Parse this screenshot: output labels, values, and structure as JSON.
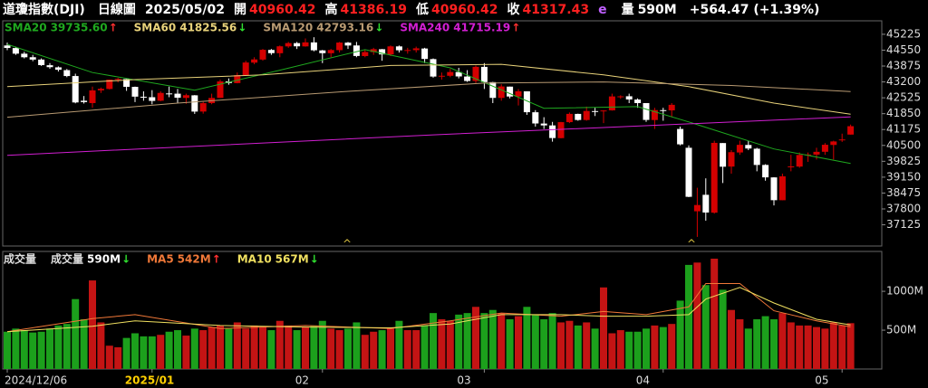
{
  "header": {
    "name": "道瓊指數(DJI)",
    "period": "日線圖",
    "date": "2025/05/02",
    "fields": [
      {
        "label": "開",
        "value": "40960.42"
      },
      {
        "label": "高",
        "value": "41386.19"
      },
      {
        "label": "低",
        "value": "40960.42"
      },
      {
        "label": "收",
        "value": "41317.43"
      }
    ],
    "flag": "e",
    "volume_label": "量",
    "volume": "590M",
    "change": "+564.47 (+1.39%)"
  },
  "chart_data": [
    {
      "type": "candlestick",
      "categories": [
        "2024/12/06",
        null,
        null,
        null,
        null,
        null,
        null,
        null,
        null,
        null,
        null,
        null,
        null,
        null,
        null,
        null,
        null,
        "2025/01",
        null,
        null,
        null,
        null,
        null,
        null,
        null,
        null,
        null,
        null,
        null,
        null,
        null,
        null,
        null,
        null,
        null,
        null,
        null,
        "02",
        null,
        null,
        null,
        null,
        null,
        null,
        null,
        null,
        null,
        null,
        null,
        null,
        null,
        null,
        null,
        null,
        null,
        null,
        "03",
        null,
        null,
        null,
        null,
        null,
        null,
        null,
        null,
        null,
        null,
        null,
        null,
        null,
        null,
        null,
        null,
        null,
        null,
        null,
        null,
        "04",
        null,
        null,
        null,
        null,
        null,
        null,
        null,
        null,
        null,
        null,
        null,
        null,
        null,
        null,
        null,
        null,
        null,
        null,
        null,
        null,
        "05",
        null
      ],
      "open": [
        44750,
        44640,
        44400,
        44250,
        44150,
        43910,
        43820,
        43700,
        43450,
        42400,
        42300,
        42840,
        42900,
        43290,
        43320,
        42990,
        42570,
        42550,
        42400,
        42710,
        42700,
        42520,
        42630,
        41940,
        42300,
        42520,
        43220,
        43150,
        43490,
        44020,
        44150,
        44560,
        44420,
        44710,
        44850,
        44710,
        44880,
        44540,
        44420,
        44550,
        44870,
        44750,
        44300,
        44470,
        44590,
        44370,
        44710,
        44550,
        44550,
        44620,
        44170,
        43430,
        43460,
        43620,
        43430,
        43240,
        43840,
        43190,
        42520,
        43000,
        42580,
        42800,
        41910,
        41430,
        41350,
        40810,
        41490,
        41840,
        41580,
        41960,
        41950,
        41990,
        42580,
        42590,
        42450,
        42300,
        41580,
        42000,
        41990,
        41200,
        40400,
        37700,
        38400,
        37640,
        40600,
        39600,
        40200,
        40520,
        40360,
        39670,
        39140,
        38170,
        39600,
        39600,
        40090,
        40110,
        40230,
        40520,
        40750,
        40960.42
      ],
      "high": [
        44870,
        44700,
        44480,
        44350,
        44200,
        44000,
        43860,
        43750,
        43550,
        42600,
        43000,
        42960,
        43300,
        43370,
        43330,
        43000,
        42800,
        42850,
        42800,
        43000,
        42900,
        42700,
        42640,
        42350,
        42700,
        43300,
        43350,
        43600,
        44100,
        44250,
        44600,
        44600,
        44750,
        44900,
        44900,
        45050,
        45100,
        44560,
        44600,
        44900,
        44900,
        44900,
        44550,
        44650,
        44600,
        44750,
        44750,
        44650,
        44700,
        44650,
        44200,
        43600,
        43750,
        43800,
        43700,
        43900,
        44000,
        43200,
        43100,
        43000,
        42900,
        42800,
        42000,
        41700,
        41500,
        41500,
        41900,
        41850,
        42150,
        42100,
        42000,
        42700,
        42630,
        42700,
        42500,
        42300,
        42100,
        42100,
        42300,
        41300,
        40500,
        38700,
        39100,
        40700,
        40600,
        40300,
        40700,
        40700,
        40400,
        39700,
        39150,
        39300,
        40100,
        40200,
        40200,
        40400,
        40600,
        40700,
        41000,
        41386.19
      ],
      "low": [
        44550,
        44350,
        44200,
        44080,
        43880,
        43760,
        43640,
        43400,
        42290,
        42280,
        42100,
        42730,
        42880,
        43180,
        42820,
        42340,
        42400,
        42250,
        42380,
        42550,
        42300,
        42270,
        41840,
        41850,
        42250,
        42520,
        43080,
        43140,
        43480,
        43950,
        44100,
        44350,
        44250,
        44650,
        44600,
        44700,
        44500,
        44000,
        44250,
        44450,
        44600,
        44250,
        44250,
        44350,
        44100,
        44300,
        44450,
        44400,
        44450,
        44000,
        43380,
        43300,
        43400,
        43350,
        43200,
        43150,
        42900,
        42300,
        42400,
        42500,
        42200,
        41800,
        41300,
        41200,
        40660,
        40800,
        41450,
        41550,
        41550,
        41750,
        41450,
        41980,
        42480,
        42300,
        42100,
        41500,
        41200,
        41550,
        41700,
        40500,
        38300,
        36611,
        37300,
        37600,
        38900,
        39300,
        40100,
        40300,
        39400,
        39000,
        37950,
        38170,
        39400,
        39550,
        39800,
        39900,
        40100,
        39900,
        40650,
        40960.42
      ],
      "close": [
        44643,
        44401,
        44248,
        44149,
        43914,
        43828,
        43717,
        43450,
        42327,
        42342,
        42840,
        42907,
        43297,
        43326,
        42992,
        42574,
        42544,
        42392,
        42732,
        42707,
        42528,
        42635,
        41938,
        42297,
        42518,
        43222,
        43153,
        43488,
        44026,
        44157,
        44565,
        44424,
        44714,
        44851,
        44714,
        44882,
        44545,
        44422,
        44556,
        44873,
        44748,
        44303,
        44470,
        44593,
        44369,
        44711,
        44546,
        44556,
        44628,
        44177,
        43428,
        43461,
        43621,
        43433,
        43240,
        43841,
        43191,
        42521,
        43007,
        42579,
        42802,
        41912,
        41433,
        41350,
        40814,
        41489,
        41841,
        41582,
        41965,
        41953,
        41985,
        42583,
        42587,
        42455,
        42300,
        41584,
        42002,
        41990,
        42226,
        40546,
        38315,
        37966,
        37646,
        40608,
        39594,
        40213,
        40525,
        40369,
        39669,
        39142,
        38171,
        39187,
        39607,
        40093,
        40114,
        40228,
        40528,
        40669,
        40753,
        41317.43
      ],
      "ylim": [
        36300,
        45760
      ],
      "yticks": [
        45225,
        44550,
        43875,
        43200,
        42525,
        41850,
        41175,
        40500,
        39825,
        39150,
        38475,
        37800,
        37125
      ],
      "up_color": "#d40000",
      "down_color": "#ffffff",
      "series": [
        {
          "name": "SMA20",
          "value_label": "39735.60",
          "trend": "↑",
          "color": "#1fa81f",
          "x": [
            0,
            10,
            22,
            32,
            42,
            52,
            63,
            74,
            80,
            90,
            99
          ],
          "values": [
            44800,
            43600,
            42850,
            43700,
            44570,
            43800,
            42080,
            42150,
            41500,
            40350,
            39735.6
          ]
        },
        {
          "name": "SMA60",
          "value_label": "41825.56",
          "trend": "↓",
          "color": "#e8d27a",
          "x": [
            0,
            15,
            30,
            45,
            58,
            70,
            80,
            90,
            99
          ],
          "values": [
            43000,
            43300,
            43500,
            43900,
            43950,
            43500,
            43000,
            42300,
            41825.56
          ]
        },
        {
          "name": "SMA120",
          "value_label": "42793.16",
          "trend": "↓",
          "color": "#b89a72",
          "x": [
            0,
            20,
            40,
            56,
            70,
            85,
            99
          ],
          "values": [
            41700,
            42300,
            42800,
            43150,
            43200,
            43050,
            42793.16
          ]
        },
        {
          "name": "SMA240",
          "value_label": "41715.19",
          "trend": "↑",
          "color": "#d11fd1",
          "x": [
            0,
            50,
            99
          ],
          "values": [
            40080,
            40950,
            41715.19
          ]
        }
      ]
    },
    {
      "type": "bar",
      "title": "成交量",
      "legend_label": "成交量",
      "legend_value": "590M",
      "legend_trend": "↓",
      "values": [
        480,
        520,
        500,
        470,
        480,
        520,
        560,
        580,
        900,
        640,
        1140,
        600,
        300,
        280,
        400,
        460,
        420,
        420,
        440,
        480,
        500,
        430,
        520,
        500,
        540,
        560,
        520,
        600,
        520,
        560,
        540,
        500,
        620,
        560,
        500,
        540,
        560,
        620,
        520,
        500,
        520,
        600,
        440,
        480,
        500,
        520,
        620,
        500,
        500,
        560,
        720,
        640,
        620,
        700,
        720,
        800,
        720,
        760,
        720,
        640,
        680,
        800,
        700,
        640,
        720,
        600,
        620,
        560,
        600,
        520,
        1050,
        460,
        500,
        480,
        480,
        520,
        560,
        540,
        580,
        880,
        1340,
        1370,
        1080,
        1420,
        1020,
        760,
        640,
        520,
        640,
        680,
        640,
        720,
        600,
        560,
        560,
        540,
        520,
        600,
        560,
        590
      ],
      "ylim": [
        0,
        1490
      ],
      "yticks": [
        {
          "value": 500,
          "label": "500M"
        },
        {
          "value": 1000,
          "label": "1000M"
        }
      ],
      "up_color": "#c41414",
      "down_color": "#1ca01c",
      "series": [
        {
          "name": "MA5",
          "value_label": "542M",
          "trend": "↑",
          "color": "#f07838",
          "x": [
            0,
            10,
            15,
            25,
            35,
            45,
            52,
            58,
            65,
            70,
            75,
            80,
            82,
            86,
            90,
            95,
            99
          ],
          "values": [
            480,
            650,
            700,
            520,
            560,
            520,
            620,
            720,
            680,
            740,
            700,
            800,
            1100,
            1100,
            750,
            620,
            542
          ]
        },
        {
          "name": "MA10",
          "value_label": "567M",
          "trend": "↓",
          "color": "#f0e060",
          "x": [
            0,
            10,
            15,
            25,
            35,
            45,
            52,
            58,
            65,
            70,
            75,
            80,
            82,
            86,
            90,
            95,
            99
          ],
          "values": [
            480,
            550,
            620,
            560,
            540,
            530,
            580,
            700,
            700,
            680,
            680,
            700,
            900,
            1050,
            850,
            640,
            567
          ]
        }
      ]
    }
  ]
}
